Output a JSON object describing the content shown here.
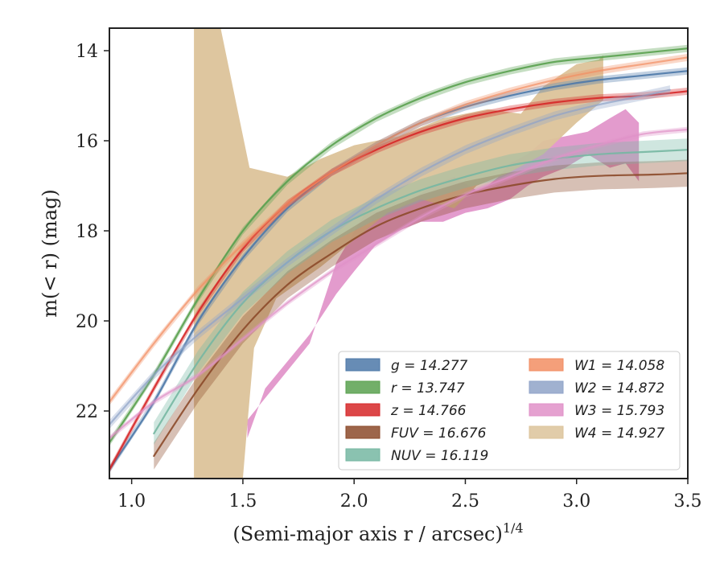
{
  "chart_data": {
    "type": "area",
    "xlabel": "(Semi-major axis r / arcsec)",
    "xlabel_exponent": "1/4",
    "ylabel": "m(< r) (mag)",
    "xlim": [
      0.9,
      3.5
    ],
    "ylim": [
      23.5,
      13.5
    ],
    "y_inverted": true,
    "x_ticks": [
      1.0,
      1.5,
      2.0,
      2.5,
      3.0,
      3.5
    ],
    "x_tick_labels": [
      "1.0",
      "1.5",
      "2.0",
      "2.5",
      "3.0",
      "3.5"
    ],
    "y_ticks": [
      14,
      16,
      18,
      20,
      22
    ],
    "y_tick_labels": [
      "14",
      "16",
      "18",
      "20",
      "22"
    ],
    "grid": false,
    "legend": {
      "placement": "lower-right",
      "columns": 2,
      "entries": [
        "g = 14.277",
        "r = 13.747",
        "z = 14.766",
        "FUV = 16.676",
        "NUV = 16.119",
        "W1 = 14.058",
        "W2 = 14.872",
        "W3 = 15.793",
        "W4 = 14.927"
      ]
    },
    "series": [
      {
        "name": "g",
        "label": "g = 14.277",
        "color": "#4c78a8",
        "band": 0.08,
        "x": [
          0.9,
          1.1,
          1.3,
          1.5,
          1.7,
          1.9,
          2.1,
          2.3,
          2.5,
          2.7,
          2.9,
          3.1,
          3.3,
          3.5
        ],
        "y": [
          23.3,
          21.8,
          20.0,
          18.6,
          17.5,
          16.7,
          16.1,
          15.6,
          15.25,
          15.0,
          14.8,
          14.65,
          14.55,
          14.45
        ]
      },
      {
        "name": "r",
        "label": "r = 13.747",
        "color": "#59a14f",
        "band": 0.08,
        "x": [
          0.9,
          1.1,
          1.3,
          1.5,
          1.7,
          1.9,
          2.1,
          2.3,
          2.5,
          2.7,
          2.9,
          3.1,
          3.3,
          3.5
        ],
        "y": [
          22.7,
          21.2,
          19.5,
          18.0,
          16.9,
          16.1,
          15.5,
          15.05,
          14.7,
          14.45,
          14.25,
          14.15,
          14.05,
          13.95
        ]
      },
      {
        "name": "z",
        "label": "z = 14.766",
        "color": "#d62728",
        "band": 0.08,
        "x": [
          0.9,
          1.1,
          1.3,
          1.5,
          1.7,
          1.9,
          2.1,
          2.3,
          2.5,
          2.7,
          2.9,
          3.1,
          3.3,
          3.5
        ],
        "y": [
          23.3,
          21.5,
          19.8,
          18.4,
          17.4,
          16.7,
          16.2,
          15.8,
          15.5,
          15.3,
          15.15,
          15.05,
          15.0,
          14.9
        ]
      },
      {
        "name": "FUV",
        "label": "FUV = 16.676",
        "color": "#8c4a2a",
        "band": 0.3,
        "x": [
          1.1,
          1.3,
          1.5,
          1.7,
          1.9,
          2.1,
          2.3,
          2.5,
          2.7,
          2.9,
          3.1,
          3.35,
          3.5
        ],
        "y": [
          23.0,
          21.5,
          20.2,
          19.2,
          18.5,
          17.9,
          17.5,
          17.2,
          17.0,
          16.85,
          16.78,
          16.75,
          16.72
        ]
      },
      {
        "name": "NUV",
        "label": "NUV = 16.119",
        "color": "#76b7a2",
        "band": 0.25,
        "x": [
          1.1,
          1.3,
          1.5,
          1.7,
          1.9,
          2.1,
          2.3,
          2.5,
          2.7,
          2.9,
          3.1,
          3.3,
          3.5
        ],
        "y": [
          22.5,
          20.9,
          19.6,
          18.7,
          18.0,
          17.5,
          17.1,
          16.8,
          16.55,
          16.4,
          16.3,
          16.25,
          16.2
        ]
      },
      {
        "name": "W1",
        "label": "W1 = 14.058",
        "color": "#f28e63",
        "band": 0.08,
        "x": [
          0.9,
          1.1,
          1.3,
          1.5,
          1.7,
          1.9,
          2.1,
          2.3,
          2.5,
          2.7,
          2.9,
          3.1,
          3.3,
          3.5
        ],
        "y": [
          21.8,
          20.5,
          19.3,
          18.3,
          17.4,
          16.7,
          16.1,
          15.6,
          15.2,
          14.9,
          14.65,
          14.45,
          14.3,
          14.15
        ]
      },
      {
        "name": "W2",
        "label": "W2 = 14.872",
        "color": "#8fa3c8",
        "band": 0.1,
        "x": [
          0.9,
          1.1,
          1.3,
          1.5,
          1.7,
          1.9,
          2.1,
          2.3,
          2.5,
          2.7,
          2.9,
          3.1,
          3.3,
          3.42
        ],
        "y": [
          22.3,
          21.2,
          20.3,
          19.5,
          18.7,
          18.0,
          17.3,
          16.7,
          16.2,
          15.8,
          15.45,
          15.2,
          15.0,
          14.87
        ]
      },
      {
        "name": "W3",
        "label": "W3 = 15.793",
        "color": "#e091c8",
        "band": 0.06,
        "x": [
          0.9,
          1.1,
          1.3,
          1.5,
          1.7,
          1.9,
          2.1,
          2.3,
          2.5,
          2.7,
          2.9,
          3.1,
          3.3,
          3.5
        ],
        "y": [
          22.6,
          21.8,
          21.2,
          20.4,
          19.6,
          18.9,
          18.3,
          17.7,
          17.2,
          16.8,
          16.4,
          16.1,
          15.85,
          15.75
        ]
      },
      {
        "name": "W4",
        "label": "W4 = 14.927",
        "color": "#dcc39a",
        "band": 0.0,
        "x": [
          1.28,
          1.4,
          1.53,
          1.7,
          1.9,
          2.1,
          2.3,
          2.5,
          2.7,
          2.9,
          3.1
        ],
        "y": [
          21.0,
          19.0,
          18.5,
          18.0,
          17.2,
          16.6,
          16.1,
          15.7,
          15.2,
          14.9,
          14.7
        ]
      }
    ],
    "bands": [
      {
        "name": "W3",
        "color": "#de8ac4",
        "upper": [
          [
            1.52,
            22.2
          ],
          [
            1.8,
            20.5
          ],
          [
            1.92,
            18.7
          ],
          [
            2.05,
            17.6
          ],
          [
            2.2,
            17.5
          ],
          [
            2.35,
            17.0
          ],
          [
            2.45,
            16.8
          ],
          [
            2.55,
            17.1
          ],
          [
            2.6,
            17.0
          ],
          [
            2.65,
            16.8
          ],
          [
            2.7,
            16.5
          ],
          [
            2.78,
            16.3
          ],
          [
            2.85,
            16.0
          ],
          [
            2.95,
            15.9
          ],
          [
            3.05,
            15.8
          ],
          [
            3.15,
            15.5
          ],
          [
            3.22,
            15.3
          ],
          [
            3.28,
            15.6
          ]
        ],
        "lower": [
          [
            3.28,
            16.9
          ],
          [
            3.22,
            16.5
          ],
          [
            3.15,
            16.6
          ],
          [
            3.05,
            16.3
          ],
          [
            2.95,
            16.6
          ],
          [
            2.85,
            16.8
          ],
          [
            2.78,
            17.0
          ],
          [
            2.7,
            17.3
          ],
          [
            2.6,
            17.5
          ],
          [
            2.5,
            17.6
          ],
          [
            2.4,
            17.8
          ],
          [
            2.3,
            17.8
          ],
          [
            2.2,
            18.0
          ],
          [
            2.1,
            18.3
          ],
          [
            2.0,
            18.9
          ],
          [
            1.92,
            19.4
          ],
          [
            1.8,
            20.3
          ],
          [
            1.6,
            21.5
          ],
          [
            1.52,
            22.6
          ]
        ]
      },
      {
        "name": "W4",
        "color": "#dcc39a",
        "upper": [
          [
            1.28,
            13.5
          ],
          [
            1.4,
            13.5
          ],
          [
            1.53,
            16.6
          ],
          [
            1.7,
            16.8
          ],
          [
            1.85,
            16.4
          ],
          [
            2.0,
            16.1
          ],
          [
            2.2,
            15.9
          ],
          [
            2.4,
            15.5
          ],
          [
            2.6,
            15.3
          ],
          [
            2.75,
            15.4
          ],
          [
            2.85,
            14.8
          ],
          [
            3.0,
            14.3
          ],
          [
            3.1,
            14.2
          ],
          [
            3.12,
            14.1
          ]
        ],
        "lower": [
          [
            3.12,
            15.1
          ],
          [
            3.0,
            15.6
          ],
          [
            2.85,
            16.3
          ],
          [
            2.7,
            16.7
          ],
          [
            2.55,
            17.0
          ],
          [
            2.45,
            17.5
          ],
          [
            2.3,
            17.3
          ],
          [
            2.15,
            17.6
          ],
          [
            2.0,
            18.2
          ],
          [
            1.85,
            18.8
          ],
          [
            1.65,
            19.5
          ],
          [
            1.55,
            20.6
          ],
          [
            1.52,
            22.3
          ],
          [
            1.5,
            23.5
          ],
          [
            1.28,
            23.5
          ]
        ]
      }
    ]
  }
}
